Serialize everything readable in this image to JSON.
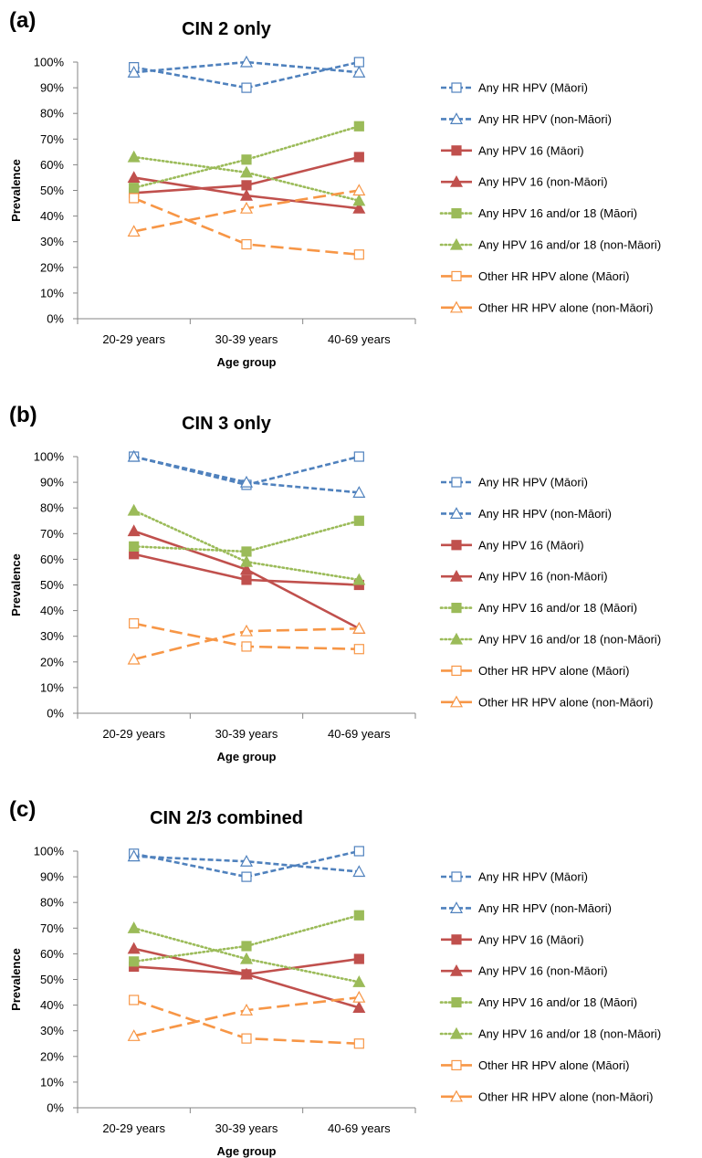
{
  "chart_data": [
    {
      "panel_label": "(a)",
      "type": "line",
      "title": "CIN 2 only",
      "xlabel": "Age group",
      "ylabel": "Prevalence",
      "ylim": [
        0,
        100
      ],
      "yticks": [
        "0%",
        "10%",
        "20%",
        "30%",
        "40%",
        "50%",
        "60%",
        "70%",
        "80%",
        "90%",
        "100%"
      ],
      "categories": [
        "20-29 years",
        "30-39 years",
        "40-69 years"
      ],
      "series": [
        {
          "name": "Any HR HPV (Māori)",
          "values": [
            98,
            90,
            100
          ],
          "color": "#4F81BD",
          "dash": "dashed",
          "marker": "square-open"
        },
        {
          "name": "Any HR HPV (non-Māori)",
          "values": [
            96,
            100,
            96
          ],
          "color": "#4F81BD",
          "dash": "dashed",
          "marker": "triangle-open"
        },
        {
          "name": "Any HPV 16  (Māori)",
          "values": [
            49,
            52,
            63
          ],
          "color": "#C0504D",
          "dash": "solid",
          "marker": "square-filled"
        },
        {
          "name": "Any HPV 16  (non-Māori)",
          "values": [
            55,
            48,
            43
          ],
          "color": "#C0504D",
          "dash": "solid",
          "marker": "triangle-filled"
        },
        {
          "name": "Any HPV 16 and/or 18 (Māori)",
          "values": [
            51,
            62,
            75
          ],
          "color": "#9BBB59",
          "dash": "dotted",
          "marker": "square-filled"
        },
        {
          "name": "Any HPV 16 and/or 18 (non-Māori)",
          "values": [
            63,
            57,
            46
          ],
          "color": "#9BBB59",
          "dash": "dotted",
          "marker": "triangle-filled"
        },
        {
          "name": "Other HR HPV alone (Māori)",
          "values": [
            47,
            29,
            25
          ],
          "color": "#F79646",
          "dash": "longdash",
          "marker": "square-open"
        },
        {
          "name": "Other HR HPV alone (non-Māori)",
          "values": [
            34,
            43,
            50
          ],
          "color": "#F79646",
          "dash": "longdash",
          "marker": "triangle-open"
        }
      ]
    },
    {
      "panel_label": "(b)",
      "type": "line",
      "title": "CIN 3 only",
      "xlabel": "Age group",
      "ylabel": "Prevalence",
      "ylim": [
        0,
        100
      ],
      "yticks": [
        "0%",
        "10%",
        "20%",
        "30%",
        "40%",
        "50%",
        "60%",
        "70%",
        "80%",
        "90%",
        "100%"
      ],
      "categories": [
        "20-29 years",
        "30-39 years",
        "40-69 years"
      ],
      "series": [
        {
          "name": "Any HR HPV (Māori)",
          "values": [
            100,
            89,
            100
          ],
          "color": "#4F81BD",
          "dash": "dashed",
          "marker": "square-open"
        },
        {
          "name": "Any HR HPV (non-Māori)",
          "values": [
            100,
            90,
            86
          ],
          "color": "#4F81BD",
          "dash": "dashed",
          "marker": "triangle-open"
        },
        {
          "name": "Any HPV 16  (Māori)",
          "values": [
            62,
            52,
            50
          ],
          "color": "#C0504D",
          "dash": "solid",
          "marker": "square-filled"
        },
        {
          "name": "Any HPV 16  (non-Māori)",
          "values": [
            71,
            56,
            33
          ],
          "color": "#C0504D",
          "dash": "solid",
          "marker": "triangle-filled"
        },
        {
          "name": "Any HPV 16 and/or 18 (Māori)",
          "values": [
            65,
            63,
            75
          ],
          "color": "#9BBB59",
          "dash": "dotted",
          "marker": "square-filled"
        },
        {
          "name": "Any HPV 16 and/or 18 (non-Māori)",
          "values": [
            79,
            59,
            52
          ],
          "color": "#9BBB59",
          "dash": "dotted",
          "marker": "triangle-filled"
        },
        {
          "name": "Other HR HPV alone (Māori)",
          "values": [
            35,
            26,
            25
          ],
          "color": "#F79646",
          "dash": "longdash",
          "marker": "square-open"
        },
        {
          "name": "Other HR HPV alone (non-Māori)",
          "values": [
            21,
            32,
            33
          ],
          "color": "#F79646",
          "dash": "longdash",
          "marker": "triangle-open"
        }
      ]
    },
    {
      "panel_label": "(c)",
      "type": "line",
      "title": "CIN 2/3 combined",
      "xlabel": "Age group",
      "ylabel": "Prevalence",
      "ylim": [
        0,
        100
      ],
      "yticks": [
        "0%",
        "10%",
        "20%",
        "30%",
        "40%",
        "50%",
        "60%",
        "70%",
        "80%",
        "90%",
        "100%"
      ],
      "categories": [
        "20-29 years",
        "30-39 years",
        "40-69 years"
      ],
      "series": [
        {
          "name": "Any HR HPV (Māori)",
          "values": [
            99,
            90,
            100
          ],
          "color": "#4F81BD",
          "dash": "dashed",
          "marker": "square-open"
        },
        {
          "name": "Any HR HPV (non-Māori)",
          "values": [
            98,
            96,
            92
          ],
          "color": "#4F81BD",
          "dash": "dashed",
          "marker": "triangle-open"
        },
        {
          "name": "Any HPV 16  (Māori)",
          "values": [
            55,
            52,
            58
          ],
          "color": "#C0504D",
          "dash": "solid",
          "marker": "square-filled"
        },
        {
          "name": "Any HPV 16  (non-Māori)",
          "values": [
            62,
            52,
            39
          ],
          "color": "#C0504D",
          "dash": "solid",
          "marker": "triangle-filled"
        },
        {
          "name": "Any HPV 16 and/or 18 (Māori)",
          "values": [
            57,
            63,
            75
          ],
          "color": "#9BBB59",
          "dash": "dotted",
          "marker": "square-filled"
        },
        {
          "name": "Any HPV 16 and/or 18 (non-Māori)",
          "values": [
            70,
            58,
            49
          ],
          "color": "#9BBB59",
          "dash": "dotted",
          "marker": "triangle-filled"
        },
        {
          "name": "Other HR HPV alone (Māori)",
          "values": [
            42,
            27,
            25
          ],
          "color": "#F79646",
          "dash": "longdash",
          "marker": "square-open"
        },
        {
          "name": "Other HR HPV alone (non-Māori)",
          "values": [
            28,
            38,
            43
          ],
          "color": "#F79646",
          "dash": "longdash",
          "marker": "triangle-open"
        }
      ]
    }
  ]
}
